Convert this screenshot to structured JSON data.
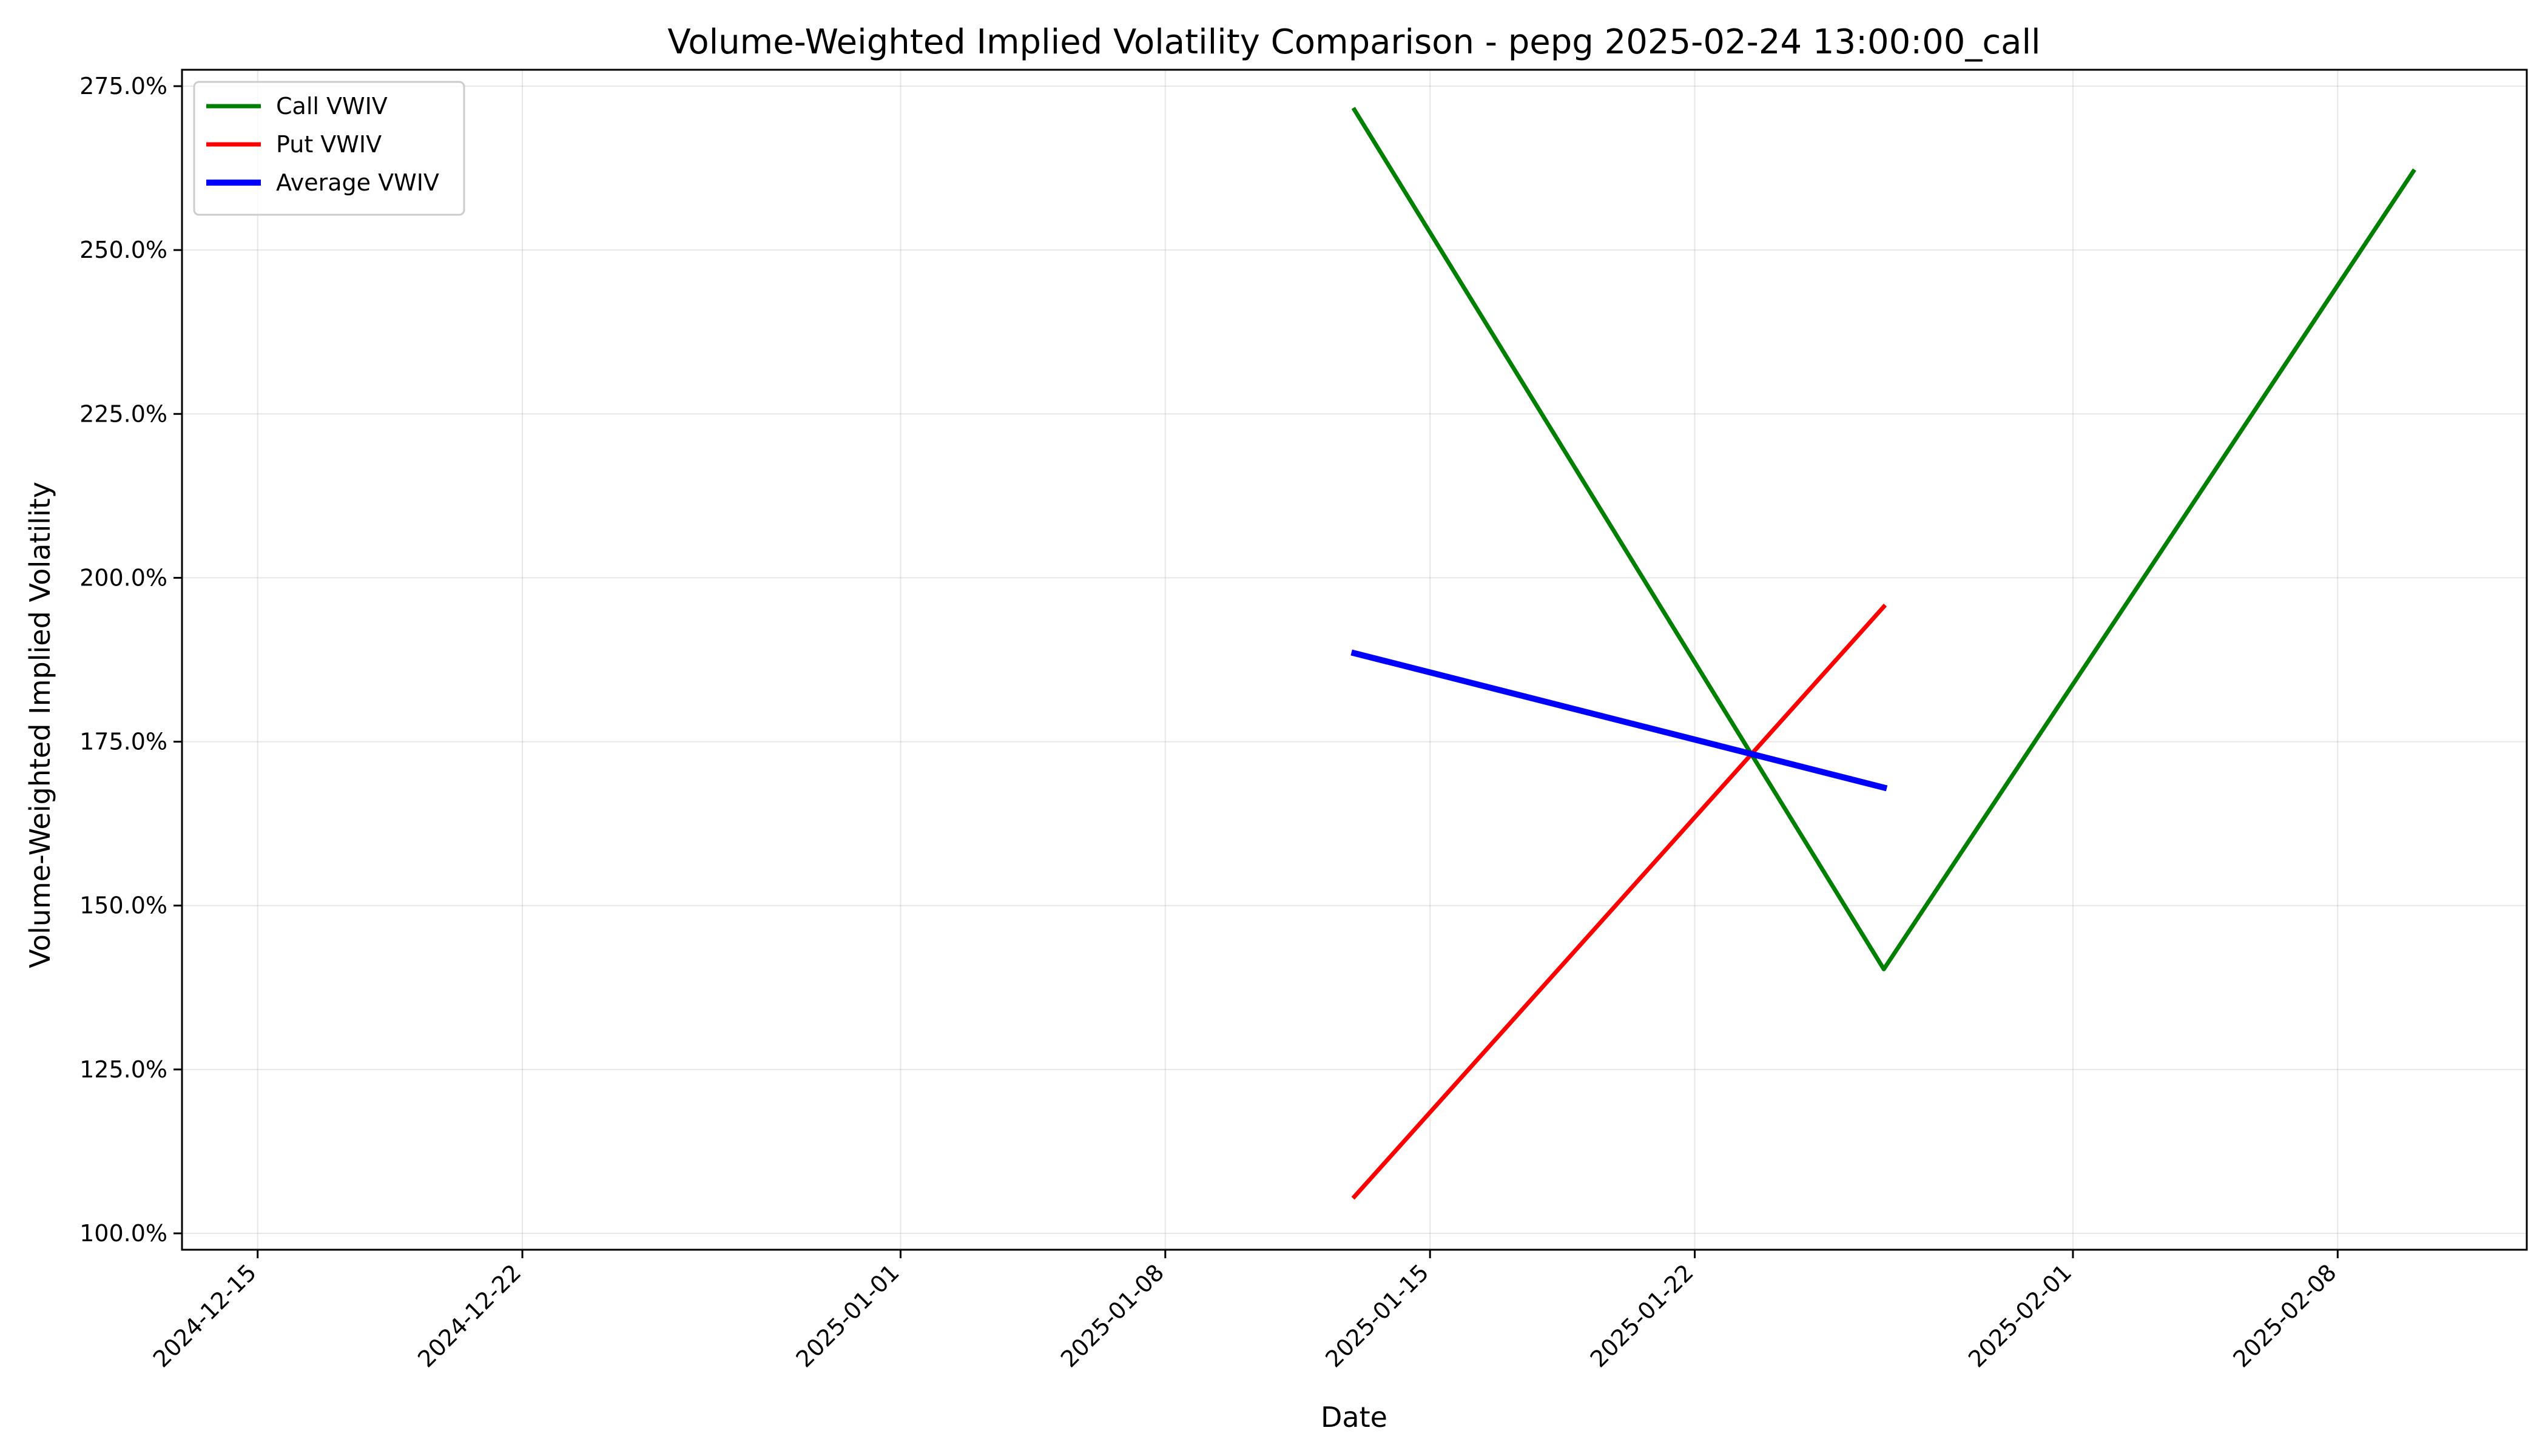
{
  "chart_data": {
    "type": "line",
    "title": "Volume-Weighted Implied Volatility Comparison - pepg 2025-02-24 13:00:00_call",
    "xlabel": "Date",
    "ylabel": "Volume-Weighted Implied Volatility",
    "xlim": [
      "2024-12-13",
      "2025-02-13"
    ],
    "ylim": [
      97.5,
      277.5
    ],
    "x_ticks": [
      "2024-12-15",
      "2024-12-22",
      "2025-01-01",
      "2025-01-08",
      "2025-01-15",
      "2025-01-22",
      "2025-02-01",
      "2025-02-08"
    ],
    "y_ticks": [
      100,
      125,
      150,
      175,
      200,
      225,
      250,
      275
    ],
    "y_tick_labels": [
      "100.0%",
      "125.0%",
      "150.0%",
      "175.0%",
      "200.0%",
      "225.0%",
      "250.0%",
      "275.0%"
    ],
    "grid": true,
    "legend_position": "top-left",
    "series": [
      {
        "name": "Call VWIV",
        "color": "#008000",
        "x": [
          "2025-01-13",
          "2025-01-27",
          "2025-02-10"
        ],
        "values": [
          271.4,
          140.3,
          262.0
        ]
      },
      {
        "name": "Put VWIV",
        "color": "#ff0000",
        "x": [
          "2025-01-13",
          "2025-01-27"
        ],
        "values": [
          105.6,
          195.6
        ]
      },
      {
        "name": "Average VWIV",
        "color": "#0000ff",
        "x": [
          "2025-01-13",
          "2025-01-27"
        ],
        "values": [
          188.5,
          168.0
        ]
      }
    ]
  }
}
